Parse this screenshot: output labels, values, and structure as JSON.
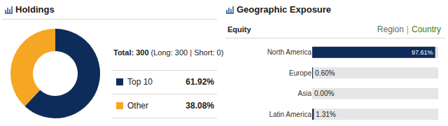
{
  "chart_data": [
    {
      "type": "pie",
      "title": "Holdings",
      "annotations": [
        "Total: 300",
        "(Long: 300 | Short: 0)"
      ],
      "categories": [
        "Top 10",
        "Other"
      ],
      "values": [
        61.92,
        38.08
      ],
      "value_labels": [
        "61.92%",
        "38.08%"
      ],
      "colors": [
        "#0d2c5a",
        "#f5a623"
      ]
    },
    {
      "type": "bar",
      "title": "Geographic Exposure",
      "subtitle": "Equity",
      "annotations": [
        "Region",
        "|",
        "Country"
      ],
      "orientation": "horizontal",
      "categories": [
        "North America",
        "Europe",
        "Asia",
        "Latin America"
      ],
      "values": [
        97.61,
        0.6,
        0.0,
        1.31
      ],
      "value_labels": [
        "97.61%",
        "0.60%",
        "0.00%",
        "1.31%"
      ],
      "data_labels": true,
      "xlim": [
        0,
        100
      ],
      "tick_labels": "y",
      "color": "#0d2c5a"
    }
  ]
}
